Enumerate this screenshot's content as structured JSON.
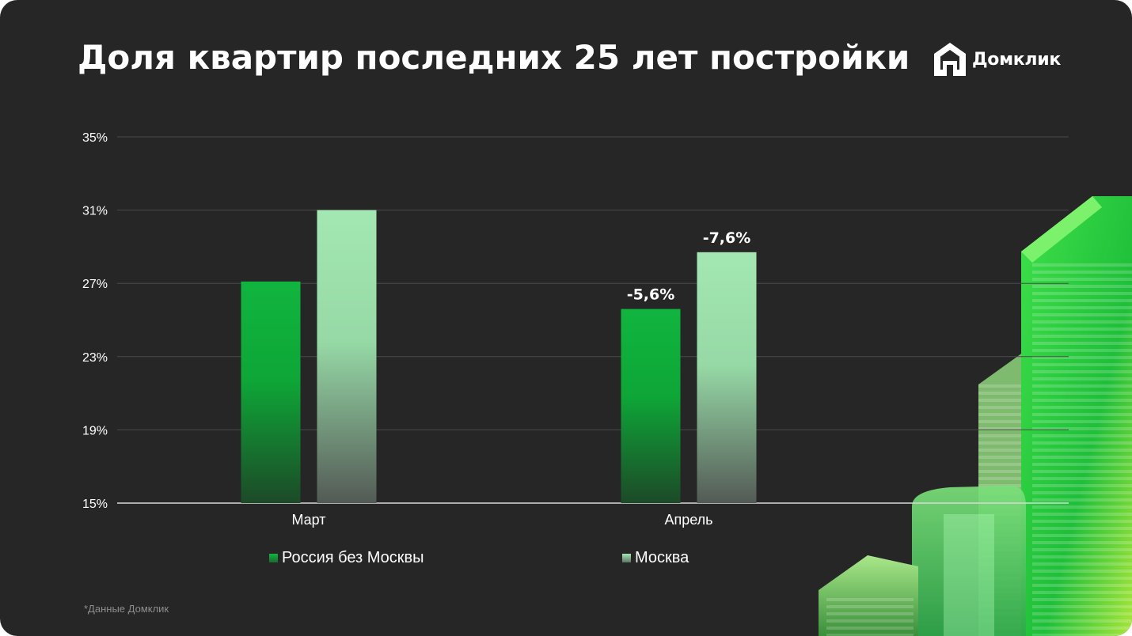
{
  "title": "Доля квартир последних 25 лет постройки",
  "logo": {
    "text": "Домклик",
    "icon": "domclick-house-logo-icon"
  },
  "footnote": "*Данные Домклик",
  "colors": {
    "background": "#262626",
    "russia_series": "#13b33e",
    "moscow_series": "#9ee3ad",
    "grid": "#4a4a4a",
    "axis": "#d9d9d9",
    "text": "#ffffff"
  },
  "chart_data": {
    "type": "bar",
    "title": "Доля квартир последних 25 лет постройки",
    "categories": [
      "Март",
      "Апрель"
    ],
    "series": [
      {
        "name": "Россия без Москвы",
        "values": [
          27.1,
          25.6
        ]
      },
      {
        "name": "Москва",
        "values": [
          31.0,
          28.7
        ]
      }
    ],
    "annotations": [
      {
        "category": "Апрель",
        "series": "Россия без Москвы",
        "text": "-5,6%"
      },
      {
        "category": "Апрель",
        "series": "Москва",
        "text": "-7,6%"
      }
    ],
    "yticks": [
      "15%",
      "19%",
      "23%",
      "27%",
      "31%",
      "35%"
    ],
    "ylim": [
      15,
      35
    ],
    "xlabel": "",
    "ylabel": "",
    "grid": true,
    "legend_position": "bottom"
  }
}
